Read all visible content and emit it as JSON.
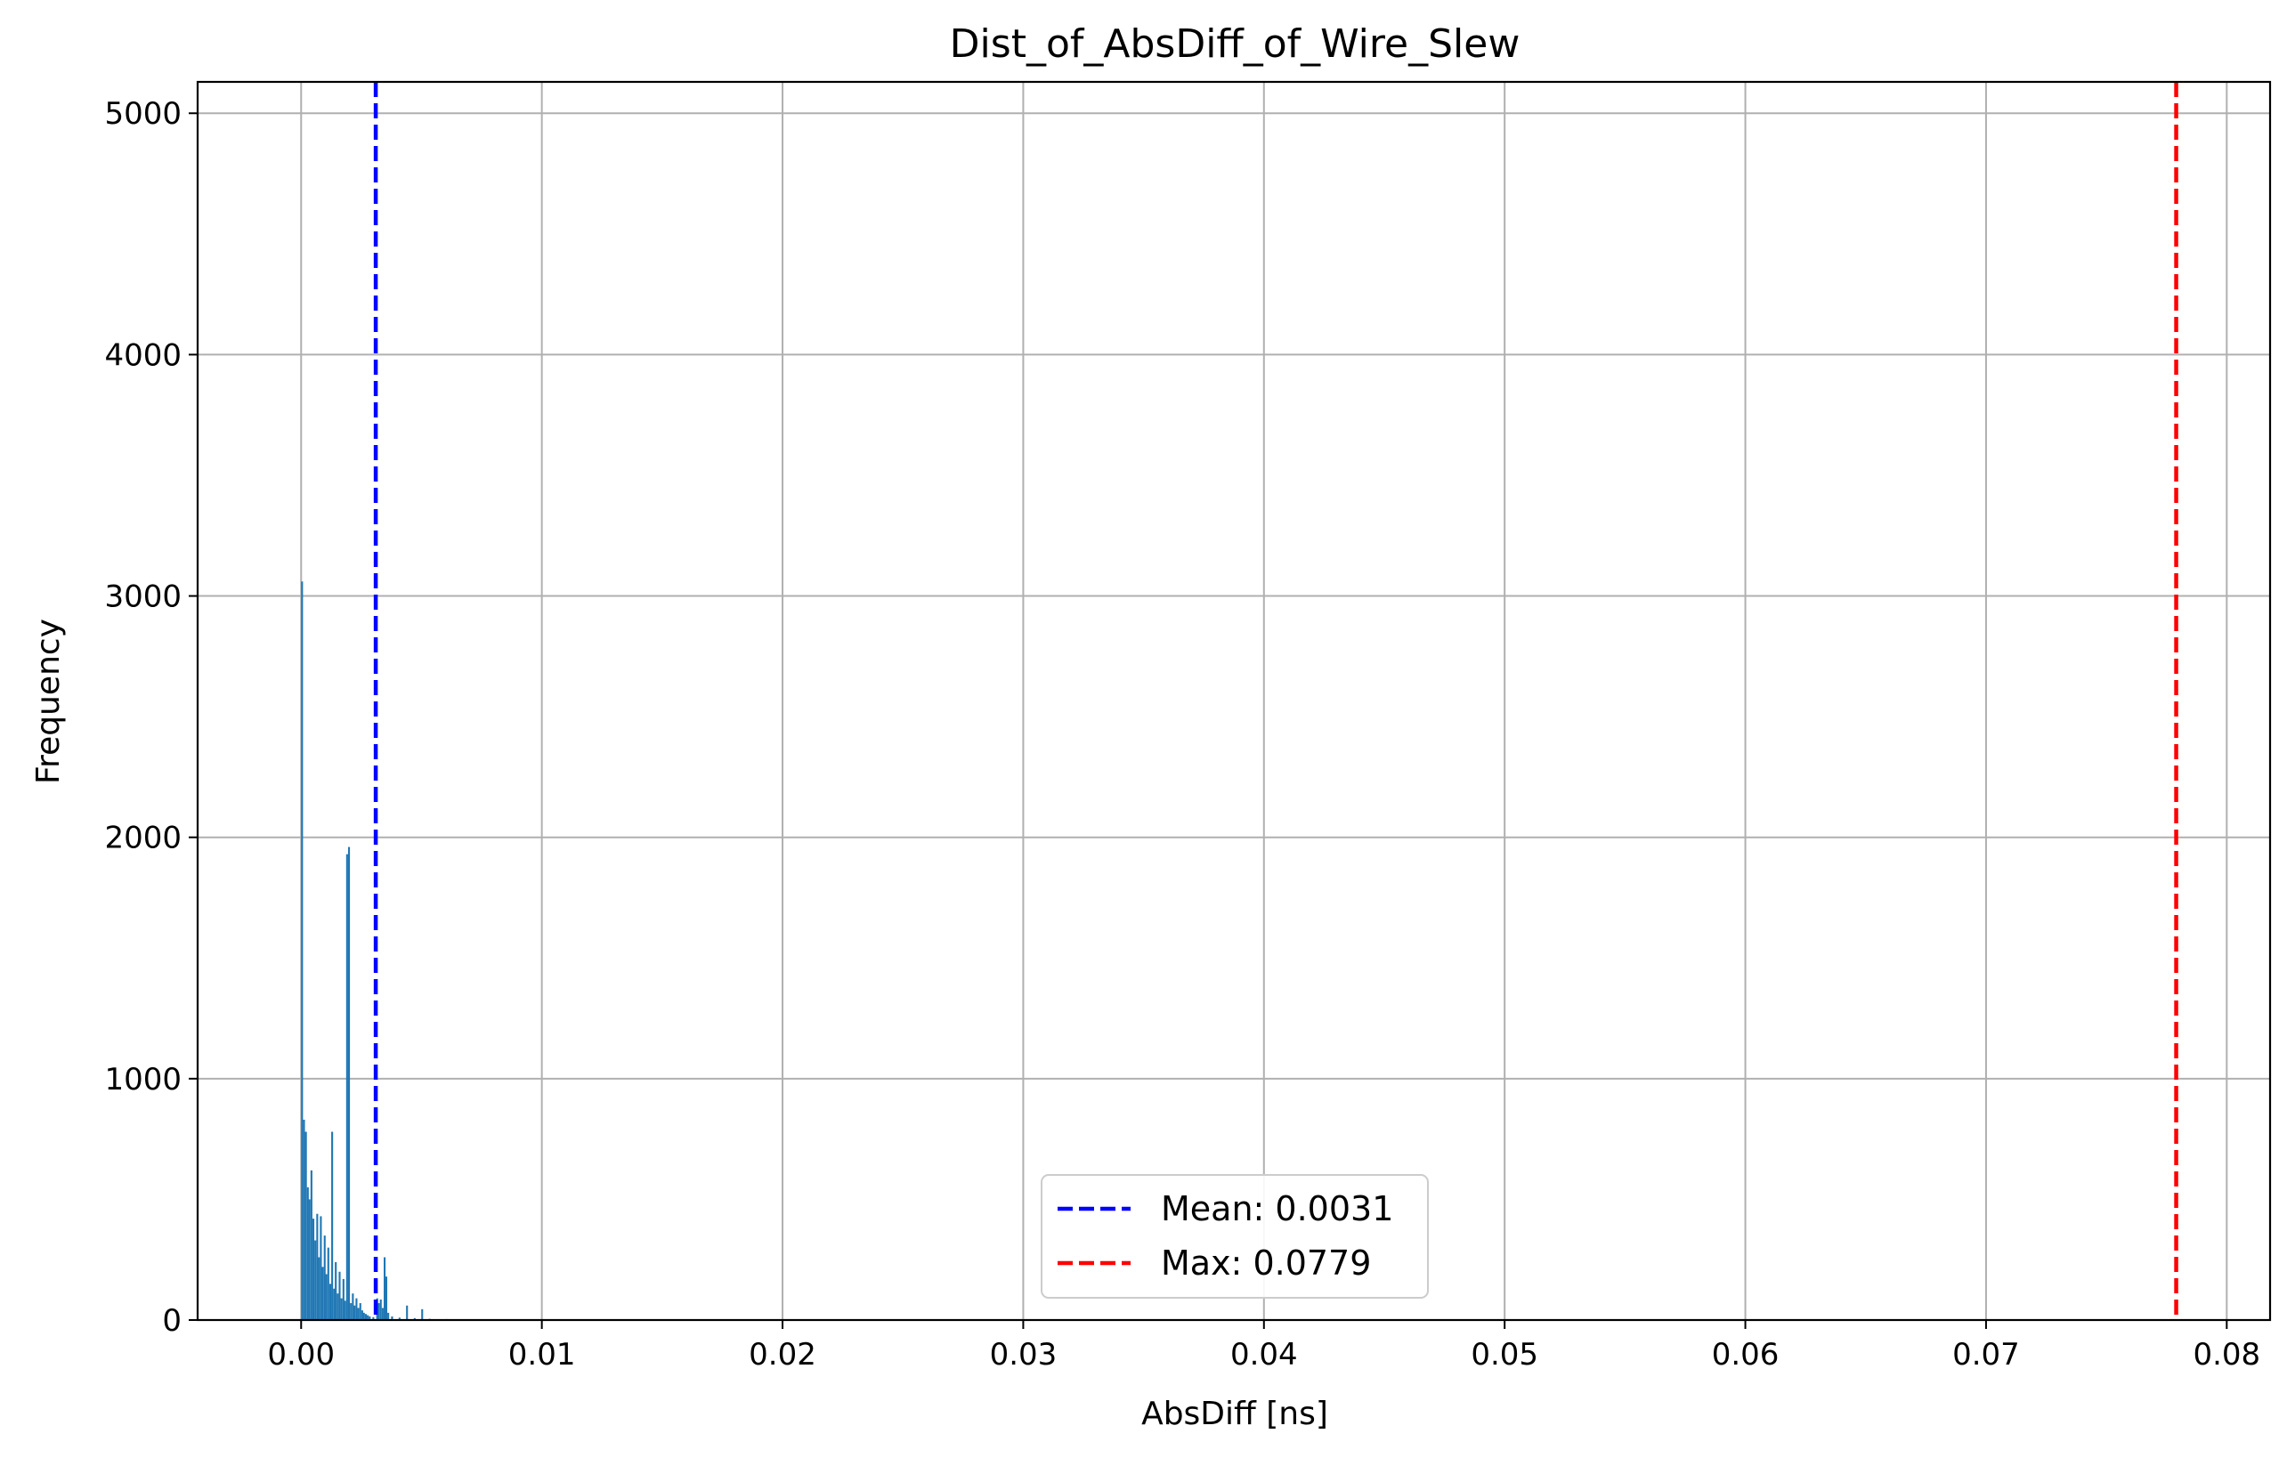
{
  "chart_data": {
    "type": "bar",
    "title": "Dist_of_AbsDiff_of_Wire_Slew",
    "xlabel": "AbsDiff [ns]",
    "ylabel": "Frequency",
    "xlim": [
      -0.0043,
      0.0818
    ],
    "ylim": [
      0,
      5130
    ],
    "x_ticks": [
      0.0,
      0.01,
      0.02,
      0.03,
      0.04,
      0.05,
      0.06,
      0.07,
      0.08
    ],
    "x_tick_labels": [
      "0.00",
      "0.01",
      "0.02",
      "0.03",
      "0.04",
      "0.05",
      "0.06",
      "0.07",
      "0.08"
    ],
    "y_ticks": [
      0,
      1000,
      2000,
      3000,
      4000,
      5000
    ],
    "y_tick_labels": [
      "0",
      "1000",
      "2000",
      "3000",
      "4000",
      "5000"
    ],
    "grid": true,
    "series_color": "#1f77b4",
    "bin_width": 7.79e-05,
    "bins": [
      [
        0.0,
        3060
      ],
      [
        8e-05,
        830
      ],
      [
        0.00016,
        780
      ],
      [
        0.00024,
        550
      ],
      [
        0.00031,
        500
      ],
      [
        0.00039,
        620
      ],
      [
        0.00047,
        420
      ],
      [
        0.00055,
        330
      ],
      [
        0.00063,
        440
      ],
      [
        0.0007,
        260
      ],
      [
        0.00078,
        430
      ],
      [
        0.00086,
        220
      ],
      [
        0.00094,
        350
      ],
      [
        0.00101,
        190
      ],
      [
        0.00109,
        300
      ],
      [
        0.00117,
        150
      ],
      [
        0.00125,
        780
      ],
      [
        0.00133,
        130
      ],
      [
        0.0014,
        240
      ],
      [
        0.00148,
        110
      ],
      [
        0.00156,
        200
      ],
      [
        0.00164,
        90
      ],
      [
        0.00172,
        170
      ],
      [
        0.00179,
        80
      ],
      [
        0.00187,
        1930
      ],
      [
        0.00195,
        1960
      ],
      [
        0.00203,
        70
      ],
      [
        0.00211,
        110
      ],
      [
        0.00218,
        60
      ],
      [
        0.00226,
        90
      ],
      [
        0.00234,
        50
      ],
      [
        0.00242,
        70
      ],
      [
        0.0025,
        40
      ],
      [
        0.00257,
        30
      ],
      [
        0.00265,
        25
      ],
      [
        0.00273,
        20
      ],
      [
        0.00281,
        15
      ],
      [
        0.00296,
        12
      ],
      [
        0.00312,
        90
      ],
      [
        0.00319,
        70
      ],
      [
        0.00327,
        85
      ],
      [
        0.00335,
        50
      ],
      [
        0.00343,
        260
      ],
      [
        0.0035,
        180
      ],
      [
        0.00358,
        30
      ],
      [
        0.00374,
        15
      ],
      [
        0.00405,
        10
      ],
      [
        0.00436,
        60
      ],
      [
        0.00468,
        8
      ],
      [
        0.00499,
        45
      ],
      [
        0.0053,
        5
      ],
      [
        0.006,
        4
      ],
      [
        0.007,
        3
      ],
      [
        0.0085,
        2
      ],
      [
        0.01,
        3
      ],
      [
        0.012,
        2
      ],
      [
        0.014,
        2
      ],
      [
        0.016,
        2
      ],
      [
        0.018,
        1
      ],
      [
        0.02,
        2
      ],
      [
        0.023,
        1
      ],
      [
        0.026,
        1
      ],
      [
        0.029,
        2
      ],
      [
        0.032,
        1
      ],
      [
        0.035,
        1
      ],
      [
        0.038,
        1
      ],
      [
        0.042,
        1
      ],
      [
        0.046,
        1
      ],
      [
        0.05,
        1
      ],
      [
        0.056,
        1
      ],
      [
        0.062,
        1
      ],
      [
        0.068,
        1
      ],
      [
        0.074,
        1
      ],
      [
        0.0779,
        1
      ]
    ],
    "reference_lines": [
      {
        "name": "Mean: 0.0031",
        "x": 0.0031,
        "color": "#0000ff",
        "style": "dashed"
      },
      {
        "name": "Max: 0.0779",
        "x": 0.0779,
        "color": "#ff0000",
        "style": "dashed"
      }
    ],
    "legend": {
      "placement": "lower-center",
      "entries": [
        "Mean: 0.0031",
        "Max: 0.0779"
      ]
    }
  }
}
